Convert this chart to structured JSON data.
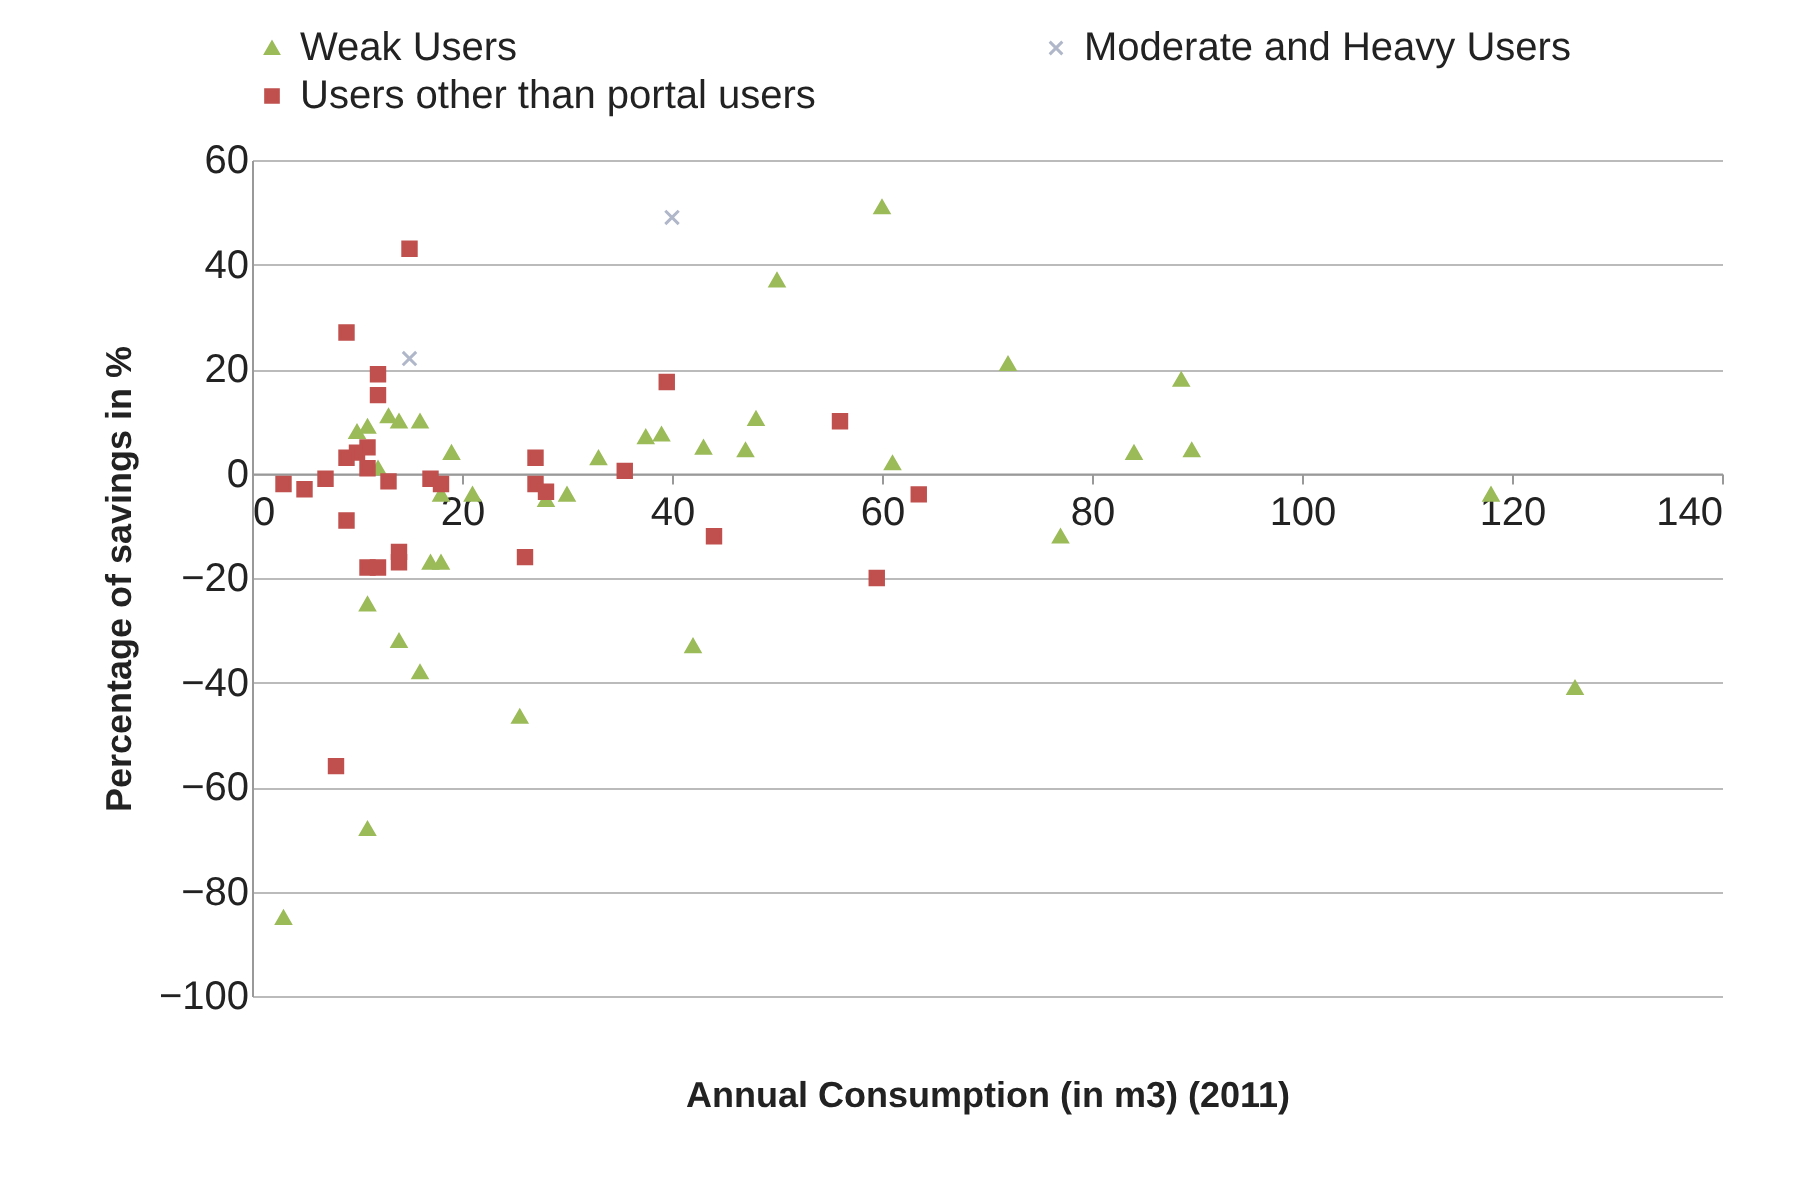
{
  "chart_data": {
    "type": "scatter",
    "xlabel": "Annual Consumption (in m3) (2011)",
    "ylabel": "Percentage of savings in %",
    "xlim": [
      0,
      140
    ],
    "ylim": [
      -100,
      60
    ],
    "xticks": [
      0,
      20,
      40,
      60,
      80,
      100,
      120,
      140
    ],
    "yticks": [
      -100,
      -80,
      -60,
      -40,
      -20,
      0,
      20,
      40,
      60
    ],
    "grid": "y",
    "legend": "top",
    "series": [
      {
        "name": "Weak Users",
        "color": "#9bbb59",
        "marker": "triangle",
        "x": [
          3,
          11,
          25.5,
          126,
          42,
          14,
          16,
          11,
          17,
          18,
          118,
          77,
          60,
          50,
          72,
          88.5,
          84,
          89.5,
          61,
          48,
          47,
          43,
          37.5,
          39,
          33,
          30,
          28,
          21,
          19,
          16,
          13,
          14,
          10,
          11,
          12,
          18
        ],
        "values": [
          -85,
          -68,
          -46.5,
          -41,
          -33,
          -32,
          -38,
          -25,
          -17,
          -17,
          -4,
          -12,
          51,
          37,
          21,
          18,
          4,
          4.5,
          2,
          10.5,
          4.5,
          5,
          7,
          7.5,
          3,
          -4,
          -5,
          -4,
          4,
          10,
          11,
          10,
          8,
          9,
          1,
          -4
        ]
      },
      {
        "name": "Moderate and Heavy Users",
        "color": "#b0b7c9",
        "marker": "cross",
        "x": [
          40,
          15
        ],
        "values": [
          49,
          22
        ]
      },
      {
        "name": "Users other than portal users",
        "color": "#c0504d",
        "marker": "square",
        "x": [
          15,
          9,
          12,
          12,
          39.5,
          56,
          27,
          35.5,
          27,
          28,
          17,
          18,
          13,
          11,
          10,
          9,
          11,
          3,
          5,
          7,
          9,
          14,
          14,
          11,
          12,
          26,
          44,
          59.5,
          63.5,
          8
        ],
        "values": [
          43,
          27,
          19,
          15,
          17.5,
          10,
          3,
          0.5,
          -2,
          -3.5,
          -1,
          -2,
          -1.5,
          1,
          4,
          3,
          5,
          -2,
          -3,
          -1,
          -9,
          -15,
          -17,
          -18,
          -18,
          -16,
          -12,
          -20,
          -4,
          -56
        ]
      }
    ]
  }
}
